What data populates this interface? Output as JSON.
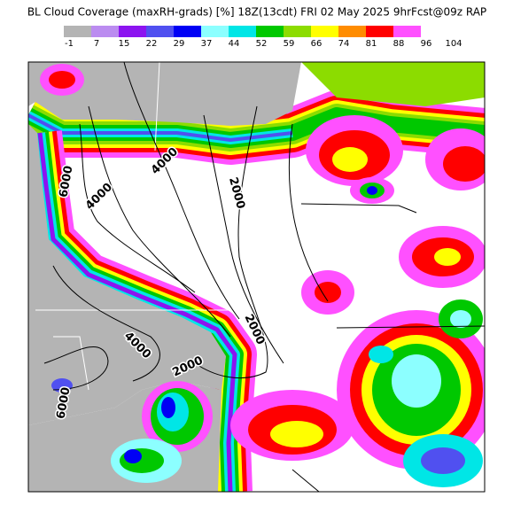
{
  "title": "BL Cloud Coverage (maxRH-grads) [%] 18Z(13cdt) FRI 02 May 2025 9hrFcst@09z RAP",
  "colorbar": {
    "labels": [
      -1,
      7,
      15,
      22,
      29,
      37,
      44,
      52,
      59,
      66,
      74,
      81,
      88,
      96,
      104
    ],
    "colors": [
      "#b4b4b4",
      "#bb8cf0",
      "#8c14f0",
      "#5050f0",
      "#0000f5",
      "#8cffff",
      "#00e6e6",
      "#00c800",
      "#8cdc00",
      "#ffff00",
      "#ff8c00",
      "#ff0000",
      "#ff50ff",
      "#ffffff"
    ]
  },
  "contour_labels": [
    6000,
    4000,
    4000,
    2000,
    2000,
    4000,
    2000,
    6000
  ]
}
